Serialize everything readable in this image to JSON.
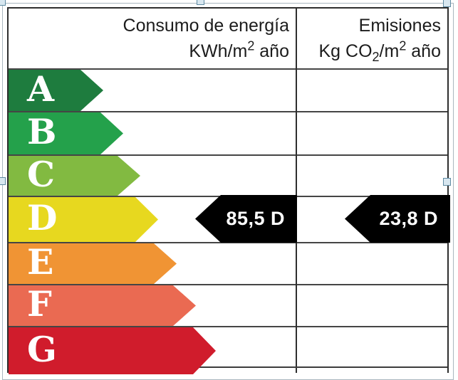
{
  "chart_data": {
    "type": "bar",
    "subtype": "energy-efficiency-rating-label",
    "categories": [
      "A",
      "B",
      "C",
      "D",
      "E",
      "F",
      "G"
    ],
    "columns": [
      {
        "name": "Consumo de energía",
        "unit": "KWh/m2 año"
      },
      {
        "name": "Emisiones",
        "unit": "Kg CO2/m2 año"
      }
    ],
    "values": [
      {
        "column": "Consumo de energía",
        "value": 85.5,
        "display": "85,5",
        "rating": "D"
      },
      {
        "column": "Emisiones",
        "value": 23.8,
        "display": "23,8",
        "rating": "D"
      }
    ],
    "legend_position": "none",
    "grid": true
  },
  "header": {
    "consumption_title": "Consumo de energía",
    "consumption_unit_prefix": "KWh/m",
    "consumption_unit_sup": "2",
    "consumption_unit_suffix": " año",
    "emissions_title": "Emisiones",
    "emissions_unit_prefix": "Kg CO",
    "emissions_unit_sub": "2",
    "emissions_unit_mid": "/m",
    "emissions_unit_sup": "2",
    "emissions_unit_suffix": " año"
  },
  "ratings": [
    {
      "letter": "A",
      "color": "#1e7c3e",
      "arrow_width": 133
    },
    {
      "letter": "B",
      "color": "#24a14b",
      "arrow_width": 161
    },
    {
      "letter": "C",
      "color": "#82ba41",
      "arrow_width": 185
    },
    {
      "letter": "D",
      "color": "#e7d81f",
      "arrow_width": 210
    },
    {
      "letter": "E",
      "color": "#f09434",
      "arrow_width": 236
    },
    {
      "letter": "F",
      "color": "#ea6a52",
      "arrow_width": 263
    },
    {
      "letter": "G",
      "color": "#d01c2c",
      "arrow_width": 291
    }
  ],
  "values": {
    "consumption_label": "85,5 D",
    "emissions_label": "23,8 D"
  },
  "colors": {
    "value_arrow": "#000000",
    "value_text": "#ffffff",
    "grid_line": "#454545",
    "table_border": "#2e2e2e",
    "selection_handle_fill": "#d8e7f0",
    "selection_handle_border": "#5f8ba3"
  }
}
